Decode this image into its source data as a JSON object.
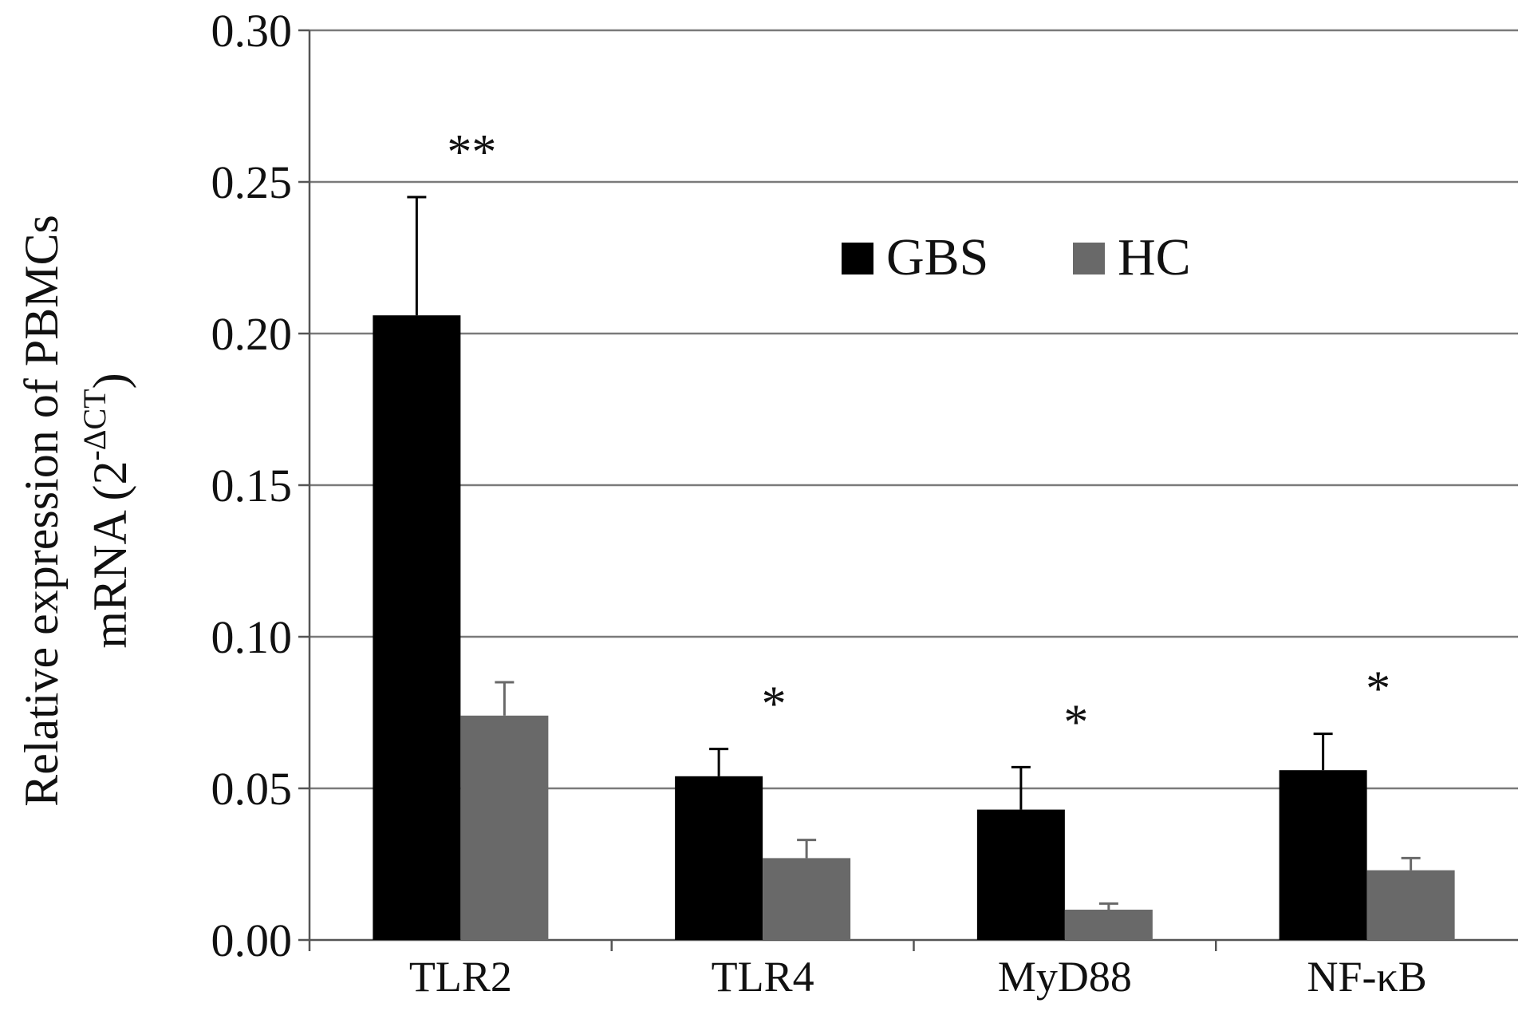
{
  "chart_data": {
    "type": "bar",
    "categories": [
      "TLR2",
      "TLR4",
      "MyD88",
      "NF-κB"
    ],
    "series": [
      {
        "name": "GBS",
        "color": "#000000",
        "values": [
          0.206,
          0.054,
          0.043,
          0.056
        ],
        "errors": [
          0.039,
          0.009,
          0.014,
          0.012
        ]
      },
      {
        "name": "HC",
        "color": "#696969",
        "values": [
          0.074,
          0.027,
          0.01,
          0.023
        ],
        "errors": [
          0.011,
          0.006,
          0.002,
          0.004
        ]
      }
    ],
    "significance": [
      "**",
      "*",
      "*",
      "*"
    ],
    "ylabel": {
      "line1": "Relative expression of PBMCs",
      "line2_prefix": "mRNA  (2",
      "line2_superscript": "-ΔCT",
      "line2_suffix": ")"
    },
    "xlabel": "",
    "ylim": [
      0,
      0.3
    ],
    "yticks": [
      "0.00",
      "0.05",
      "0.10",
      "0.15",
      "0.20",
      "0.25",
      "0.30"
    ],
    "ytick_values": [
      0,
      0.05,
      0.1,
      0.15,
      0.2,
      0.25,
      0.3
    ],
    "grid": true,
    "legend_position": "top-center"
  }
}
